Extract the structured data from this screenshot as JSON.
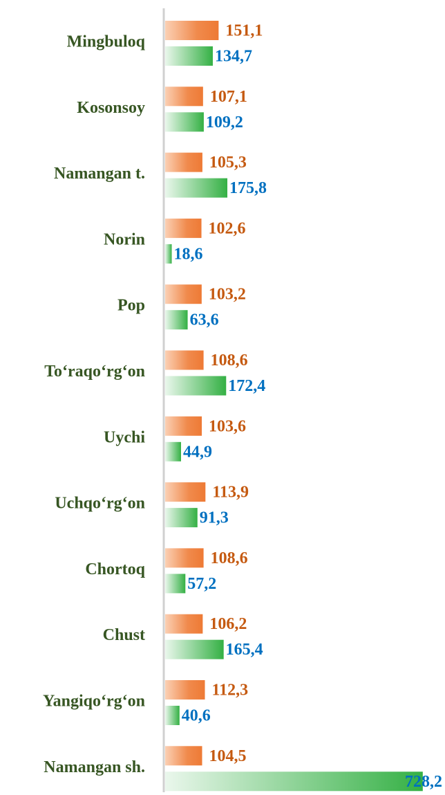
{
  "chart_data": {
    "type": "hbar",
    "categories": [
      "Mingbuloq",
      "Kosonsoy",
      "Namangan t.",
      "Norin",
      "Pop",
      "To‘raqo‘rg‘on",
      "Uychi",
      "Uchqo‘rg‘on",
      "Chortoq",
      "Chust",
      "Yangiqo‘rg‘on",
      "Namangan sh."
    ],
    "series": [
      {
        "color": "#f07e3a",
        "values": [
          151.1,
          107.1,
          105.3,
          102.6,
          103.2,
          108.6,
          103.6,
          113.9,
          108.6,
          106.2,
          112.3,
          104.5
        ],
        "value_labels": [
          "151,1",
          "107,1",
          "105,3",
          "102,6",
          "103,2",
          "108,6",
          "103,6",
          "113,9",
          "108,6",
          "106,2",
          "112,3",
          "104,5"
        ]
      },
      {
        "color": "#3cb44b",
        "values": [
          134.7,
          109.2,
          175.8,
          18.6,
          63.6,
          172.4,
          44.9,
          91.3,
          57.2,
          165.4,
          40.6,
          728.2
        ],
        "value_labels": [
          "134,7",
          "109,2",
          "175,8",
          "18,6",
          "63,6",
          "172,4",
          "44,9",
          "91,3",
          "57,2",
          "165,4",
          "40,6",
          "728,2"
        ]
      }
    ],
    "xlim": [
      0,
      750
    ]
  }
}
